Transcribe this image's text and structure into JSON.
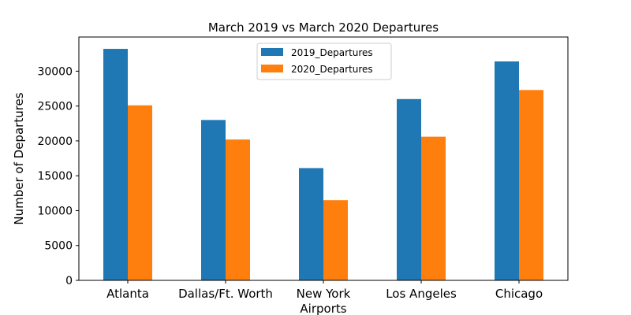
{
  "chart_data": {
    "type": "bar",
    "title": "March 2019 vs March 2020 Departures",
    "xlabel": "Airports",
    "ylabel": "Number of Departures",
    "categories": [
      "Atlanta",
      "Dallas/Ft. Worth",
      "New York",
      "Los Angeles",
      "Chicago"
    ],
    "series": [
      {
        "name": "2019_Departures",
        "color": "#1f77b4",
        "values": [
          33200,
          23000,
          16100,
          26000,
          31400
        ]
      },
      {
        "name": "2020_Departures",
        "color": "#ff7f0e",
        "values": [
          25100,
          20200,
          11500,
          20600,
          27300
        ]
      }
    ],
    "ylim": [
      0,
      34900
    ],
    "yticks": [
      0,
      5000,
      10000,
      15000,
      20000,
      25000,
      30000
    ],
    "grid": false,
    "legend_position": "top-center"
  }
}
